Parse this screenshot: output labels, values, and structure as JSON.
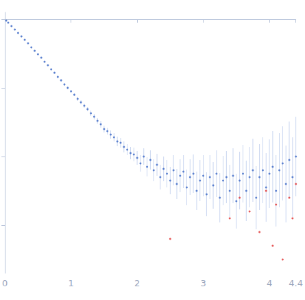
{
  "chart_data": {
    "type": "scatter",
    "xlim": [
      0,
      4.4
    ],
    "xticks": [
      0,
      1,
      2,
      3,
      4
    ],
    "ylim": [
      -3.7,
      0.1
    ],
    "yticks": [
      -3,
      -2,
      -1,
      0
    ],
    "tick_labels": "x",
    "grid": false,
    "marker": "circle",
    "series": [
      {
        "color": "#3a66c4",
        "x": [
          0.02,
          0.05,
          0.1,
          0.15,
          0.2,
          0.25,
          0.3,
          0.35,
          0.4,
          0.45,
          0.5,
          0.55,
          0.6,
          0.65,
          0.7,
          0.75,
          0.8,
          0.85,
          0.9,
          0.95,
          1.0,
          1.05,
          1.1,
          1.15,
          1.2,
          1.25,
          1.3,
          1.35,
          1.4,
          1.45,
          1.5,
          1.55,
          1.6,
          1.65,
          1.7,
          1.75,
          1.8,
          1.85,
          1.9,
          1.95,
          2.0,
          2.05,
          2.1,
          2.15,
          2.2,
          2.25,
          2.3,
          2.35,
          2.4,
          2.45,
          2.5,
          2.55,
          2.6,
          2.65,
          2.7,
          2.75,
          2.8,
          2.85,
          2.9,
          2.95,
          3.0,
          3.05,
          3.1,
          3.15,
          3.2,
          3.25,
          3.3,
          3.35,
          3.4,
          3.45,
          3.5,
          3.55,
          3.6,
          3.65,
          3.7,
          3.75,
          3.8,
          3.85,
          3.9,
          3.95,
          4.0,
          4.05,
          4.1,
          4.15,
          4.2,
          4.25,
          4.3,
          4.35,
          4.4
        ],
        "values": [
          -0.02,
          -0.05,
          -0.1,
          -0.15,
          -0.2,
          -0.25,
          -0.3,
          -0.35,
          -0.41,
          -0.46,
          -0.51,
          -0.56,
          -0.62,
          -0.67,
          -0.73,
          -0.78,
          -0.84,
          -0.89,
          -0.95,
          -1.0,
          -1.05,
          -1.1,
          -1.16,
          -1.21,
          -1.26,
          -1.31,
          -1.37,
          -1.42,
          -1.48,
          -1.53,
          -1.6,
          -1.63,
          -1.68,
          -1.72,
          -1.78,
          -1.8,
          -1.86,
          -1.9,
          -1.95,
          -1.97,
          -2.02,
          -2.1,
          -2.0,
          -2.15,
          -2.05,
          -2.2,
          -2.12,
          -2.3,
          -2.18,
          -2.25,
          -2.35,
          -2.2,
          -2.4,
          -2.28,
          -2.22,
          -2.45,
          -2.3,
          -2.25,
          -2.5,
          -2.35,
          -2.28,
          -2.55,
          -2.3,
          -2.42,
          -2.25,
          -2.6,
          -2.35,
          -2.3,
          -2.5,
          -2.28,
          -2.65,
          -2.35,
          -2.25,
          -2.5,
          -2.3,
          -2.2,
          -2.6,
          -2.3,
          -2.2,
          -2.45,
          -2.25,
          -2.15,
          -2.5,
          -2.2,
          -2.1,
          -2.4,
          -2.05,
          -2.3,
          -2.0
        ],
        "errors": [
          0.01,
          0.01,
          0.01,
          0.01,
          0.01,
          0.01,
          0.01,
          0.01,
          0.01,
          0.01,
          0.01,
          0.01,
          0.01,
          0.01,
          0.01,
          0.01,
          0.02,
          0.02,
          0.02,
          0.02,
          0.02,
          0.02,
          0.03,
          0.03,
          0.03,
          0.03,
          0.04,
          0.04,
          0.04,
          0.05,
          0.05,
          0.05,
          0.06,
          0.06,
          0.07,
          0.07,
          0.08,
          0.08,
          0.09,
          0.1,
          0.1,
          0.12,
          0.12,
          0.14,
          0.14,
          0.16,
          0.16,
          0.18,
          0.18,
          0.2,
          0.2,
          0.22,
          0.22,
          0.24,
          0.24,
          0.26,
          0.26,
          0.28,
          0.28,
          0.3,
          0.3,
          0.32,
          0.32,
          0.34,
          0.34,
          0.36,
          0.36,
          0.38,
          0.38,
          0.4,
          0.4,
          0.42,
          0.42,
          0.44,
          0.44,
          0.46,
          0.46,
          0.48,
          0.48,
          0.5,
          0.5,
          0.52,
          0.52,
          0.54,
          0.54,
          0.56,
          0.56,
          0.58,
          0.58
        ]
      },
      {
        "color": "#e03030",
        "x": [
          2.5,
          3.4,
          3.55,
          3.7,
          3.85,
          3.95,
          4.05,
          4.1,
          4.2,
          4.3,
          4.35,
          4.4
        ],
        "values": [
          -3.2,
          -2.9,
          -2.6,
          -2.8,
          -3.1,
          -2.5,
          -3.3,
          -2.7,
          -3.5,
          -2.6,
          -2.9,
          -2.4
        ]
      }
    ]
  }
}
